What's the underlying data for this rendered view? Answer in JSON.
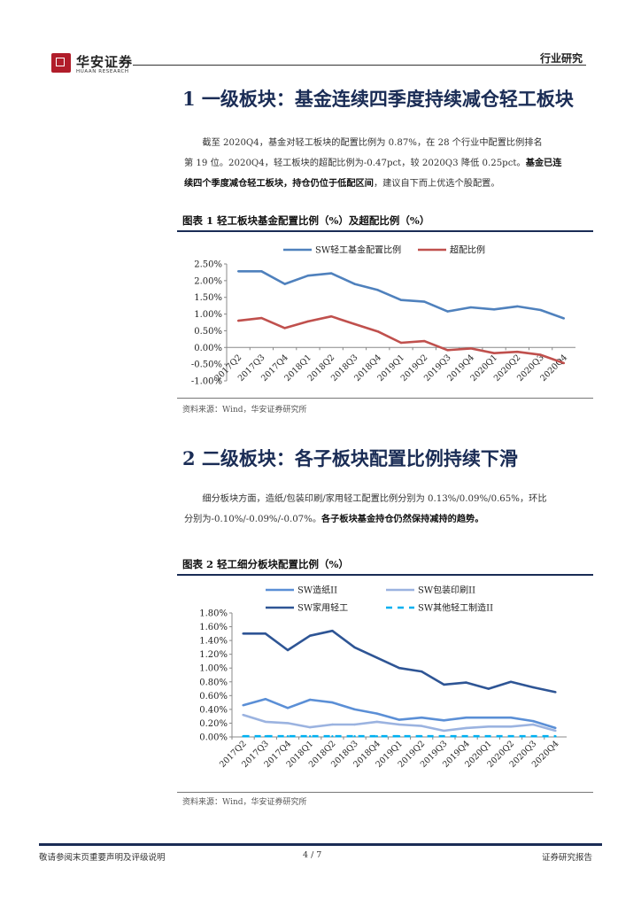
{
  "header": {
    "logo_cn": "华安证券",
    "logo_en": "HUAAN RESEARCH",
    "category": "行业研究"
  },
  "section1": {
    "title": "1 一级板块：基金连续四季度持续减仓轻工板块",
    "para_line1": "截至 2020Q4，基金对轻工板块的配置比例为 0.87%，在 28 个行业中配置比例排名",
    "para_line2": "第 19 位。2020Q4，轻工板块的超配比例为-0.47pct，较 2020Q3 降低 0.25pct。",
    "para_bold_tail": "基金已连",
    "para_bold_line3": "续四个季度减仓轻工板块，持仓仍位于低配区间",
    "para_tail": "，建议自下而上优选个股配置。"
  },
  "figure1": {
    "title": "图表 1   轻工板块基金配置比例（%）及超配比例（%）",
    "source": "资料来源：Wind，华安证券研究所"
  },
  "section2": {
    "title": "2 二级板块：各子板块配置比例持续下滑",
    "para_line1": "细分板块方面，造纸/包装印刷/家用轻工配置比例分别为 0.13%/0.09%/0.65%，环比",
    "para_line2_plain": "分别为-0.10%/-0.09%/-0.07%。",
    "para_line2_bold": "各子板块基金持仓仍然保持减持的趋势。"
  },
  "figure2": {
    "title": "图表 2   轻工细分板块配置比例（%）",
    "source": "资料来源：Wind，华安证券研究所"
  },
  "footer": {
    "left": "敬请参阅末页重要声明及评级说明",
    "page": "4 / 7",
    "right": "证券研究报告"
  },
  "chart_data": [
    {
      "type": "line",
      "categories": [
        "2017Q2",
        "2017Q3",
        "2017Q4",
        "2018Q1",
        "2018Q2",
        "2018Q3",
        "2018Q4",
        "2019Q1",
        "2019Q2",
        "2019Q3",
        "2019Q4",
        "2020Q1",
        "2020Q2",
        "2020Q3",
        "2020Q4"
      ],
      "series": [
        {
          "name": "SW轻工基金配置比例",
          "color": "#4f81bd",
          "values": [
            2.28,
            2.28,
            1.9,
            2.15,
            2.22,
            1.9,
            1.72,
            1.42,
            1.37,
            1.08,
            1.2,
            1.14,
            1.23,
            1.12,
            0.87
          ]
        },
        {
          "name": "超配比例",
          "color": "#c0504d",
          "values": [
            0.8,
            0.88,
            0.58,
            0.78,
            0.93,
            0.7,
            0.48,
            0.14,
            0.19,
            -0.08,
            -0.03,
            -0.17,
            -0.13,
            -0.22,
            -0.47
          ]
        }
      ],
      "ylim": [
        -1.0,
        2.5
      ],
      "yticks": [
        "-1.00%",
        "-0.50%",
        "0.00%",
        "0.50%",
        "1.00%",
        "1.50%",
        "2.00%",
        "2.50%"
      ],
      "ytick_values": [
        -1.0,
        -0.5,
        0,
        0.5,
        1.0,
        1.5,
        2.0,
        2.5
      ],
      "legend": "top"
    },
    {
      "type": "line",
      "categories": [
        "2017Q2",
        "2017Q3",
        "2017Q4",
        "2018Q1",
        "2018Q2",
        "2018Q3",
        "2018Q4",
        "2019Q1",
        "2019Q2",
        "2019Q3",
        "2019Q4",
        "2020Q1",
        "2020Q2",
        "2020Q3",
        "2020Q4"
      ],
      "series": [
        {
          "name": "SW造纸II",
          "color": "#5b8fd6",
          "dash": false,
          "values": [
            0.46,
            0.55,
            0.42,
            0.54,
            0.5,
            0.4,
            0.34,
            0.25,
            0.28,
            0.24,
            0.28,
            0.28,
            0.28,
            0.23,
            0.13
          ]
        },
        {
          "name": "SW包装印刷II",
          "color": "#9bb3e0",
          "dash": false,
          "values": [
            0.32,
            0.22,
            0.2,
            0.14,
            0.18,
            0.18,
            0.22,
            0.18,
            0.16,
            0.09,
            0.13,
            0.15,
            0.15,
            0.18,
            0.09
          ]
        },
        {
          "name": "SW家用轻工",
          "color": "#2e5595",
          "dash": false,
          "values": [
            1.5,
            1.5,
            1.26,
            1.47,
            1.54,
            1.3,
            1.15,
            1.0,
            0.95,
            0.76,
            0.79,
            0.7,
            0.8,
            0.72,
            0.65
          ]
        },
        {
          "name": "SW其他轻工制造II",
          "color": "#00b0f0",
          "dash": true,
          "values": [
            0.01,
            0.01,
            0.01,
            0.01,
            0.01,
            0.01,
            0.01,
            0.01,
            0.01,
            0.01,
            0.01,
            0.01,
            0.01,
            0.01,
            0.01
          ]
        }
      ],
      "ylim": [
        0,
        1.8
      ],
      "yticks": [
        "0.00%",
        "0.20%",
        "0.40%",
        "0.60%",
        "0.80%",
        "1.00%",
        "1.20%",
        "1.40%",
        "1.60%",
        "1.80%"
      ],
      "ytick_values": [
        0,
        0.2,
        0.4,
        0.6,
        0.8,
        1.0,
        1.2,
        1.4,
        1.6,
        1.8
      ],
      "legend": "top"
    }
  ]
}
